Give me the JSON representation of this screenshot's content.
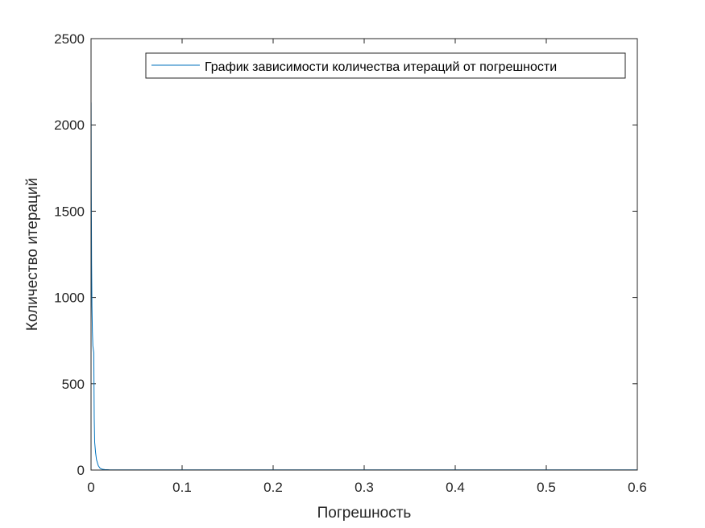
{
  "chart_data": {
    "type": "line",
    "title": "",
    "xlabel": "Погрешность",
    "ylabel": "Количество итераций",
    "xlim": [
      0,
      0.6
    ],
    "ylim": [
      0,
      2500
    ],
    "xticks": [
      0,
      0.1,
      0.2,
      0.3,
      0.4,
      0.5,
      0.6
    ],
    "xtick_labels": [
      "0",
      "0.1",
      "0.2",
      "0.3",
      "0.4",
      "0.5",
      "0.6"
    ],
    "yticks": [
      0,
      500,
      1000,
      1500,
      2000,
      2500
    ],
    "ytick_labels": [
      "0",
      "500",
      "1000",
      "1500",
      "2000",
      "2500"
    ],
    "grid": false,
    "legend_position": "top-right",
    "series": [
      {
        "name": "График зависимости количества итераций от погрешности",
        "color": "#0072BD",
        "x": [
          0.0001,
          0.0003,
          0.0006,
          0.001,
          0.0015,
          0.002,
          0.0025,
          0.003,
          0.0035,
          0.004,
          0.005,
          0.006,
          0.008,
          0.01,
          0.012,
          0.015,
          0.02,
          0.05,
          0.1,
          0.2,
          0.3,
          0.4,
          0.5,
          0.6
        ],
        "y": [
          2130,
          1600,
          1200,
          950,
          800,
          720,
          700,
          680,
          300,
          160,
          100,
          60,
          25,
          10,
          5,
          3,
          2,
          1,
          1,
          1,
          1,
          1,
          1,
          1
        ]
      }
    ]
  }
}
